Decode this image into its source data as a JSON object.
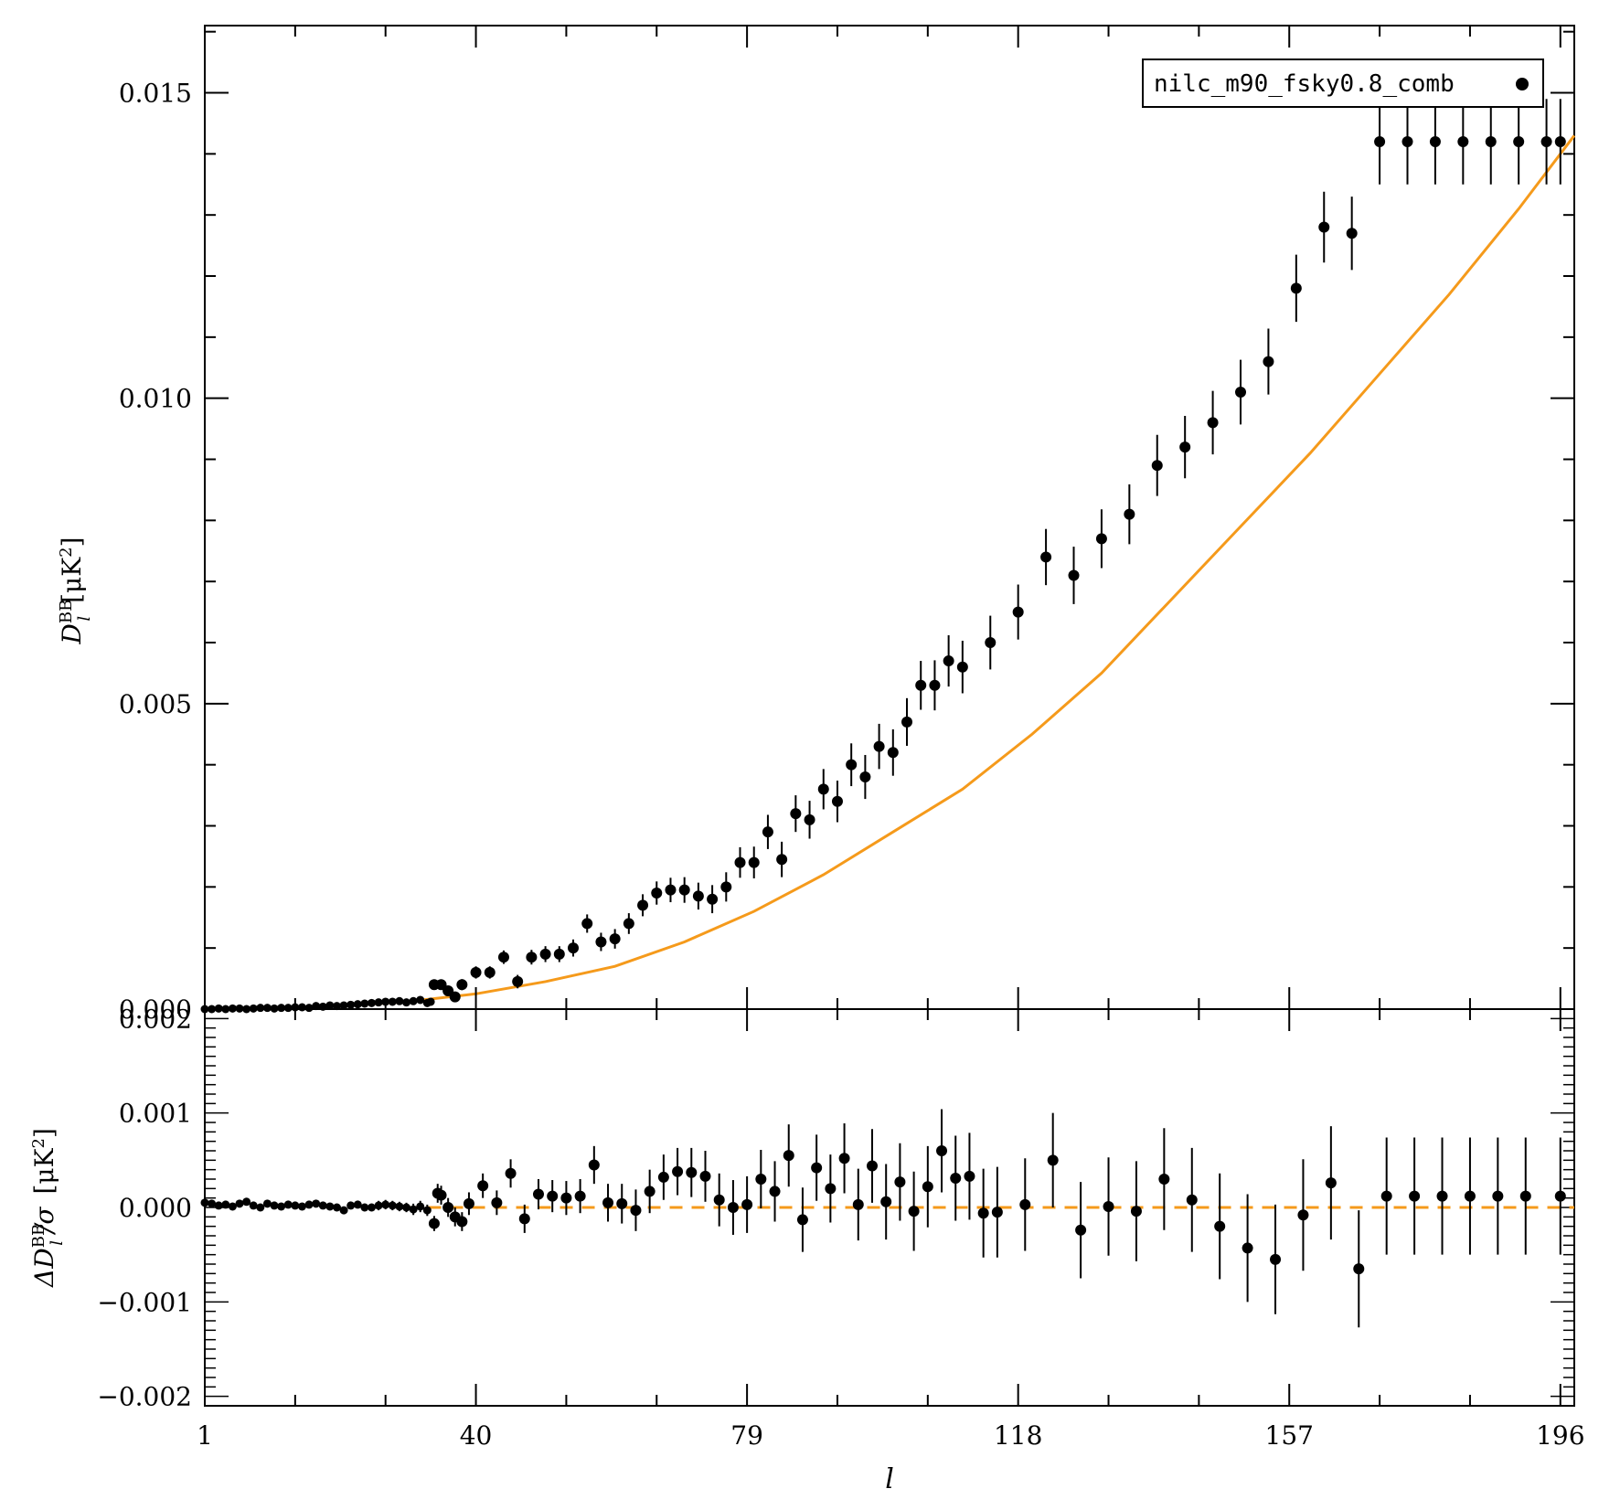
{
  "chart_data": [
    {
      "type": "scatter",
      "panel": "top",
      "ylabel": "D_l^BB [μK²]",
      "ylabel_parts": {
        "sym": "D",
        "sub": "l",
        "sup": "BB",
        "unit": "[μK",
        "unit_sup": "2",
        "unit_close": "]"
      },
      "xlim": [
        1,
        198
      ],
      "ylim": [
        0.0,
        0.0161
      ],
      "y_ticks": [
        "0.000",
        "0.005",
        "0.010",
        "0.015"
      ],
      "y_tick_values": [
        0.0,
        0.005,
        0.01,
        0.015
      ],
      "legend": {
        "label": "nilc_m90_fsky0.8_comb",
        "placement": "top-right"
      },
      "model_color": "#f59a1b",
      "points_color": "#000000",
      "model": {
        "x": [
          1,
          10,
          20,
          30,
          40,
          50,
          60,
          70,
          80,
          90,
          100,
          110,
          120,
          130,
          140,
          150,
          160,
          170,
          180,
          190,
          198
        ],
        "y": [
          0.0,
          2e-05,
          5e-05,
          0.00012,
          0.00025,
          0.00045,
          0.0007,
          0.0011,
          0.0016,
          0.0022,
          0.0029,
          0.0036,
          0.0045,
          0.0055,
          0.0067,
          0.0079,
          0.0091,
          0.0104,
          0.0117,
          0.0131,
          0.0143
        ]
      },
      "series": {
        "name": "nilc_m90_fsky0.8_comb",
        "x": [
          1,
          2,
          3,
          4,
          5,
          6,
          7,
          8,
          9,
          10,
          11,
          12,
          13,
          14,
          15,
          16,
          17,
          18,
          19,
          20,
          21,
          22,
          23,
          24,
          25,
          26,
          27,
          28,
          29,
          30,
          31,
          32,
          33,
          33.5,
          34,
          35,
          36,
          37,
          38,
          40,
          42,
          44,
          46,
          48,
          50,
          52,
          54,
          56,
          58,
          60,
          62,
          64,
          66,
          68,
          70,
          72,
          74,
          76,
          78,
          80,
          82,
          84,
          86,
          88,
          90,
          92,
          94,
          96,
          98,
          100,
          102,
          104,
          106,
          108,
          110,
          114,
          118,
          122,
          126,
          130,
          134,
          138,
          142,
          146,
          150,
          154,
          158,
          162,
          166,
          170,
          174,
          178,
          182,
          186,
          190,
          194,
          196
        ],
        "y": [
          0.0,
          0.0,
          1e-05,
          0.0,
          1e-05,
          1e-05,
          0.0,
          1e-05,
          2e-05,
          2e-05,
          1e-05,
          2e-05,
          2e-05,
          3e-05,
          3e-05,
          2e-05,
          5e-05,
          4e-05,
          6e-05,
          5e-05,
          6e-05,
          7e-05,
          8e-05,
          9e-05,
          0.0001,
          0.00011,
          0.00012,
          0.00012,
          0.00013,
          0.00011,
          0.00013,
          0.00015,
          0.0001,
          0.00012,
          0.0004,
          0.0004,
          0.0003,
          0.0002,
          0.0004,
          0.0006,
          0.0006,
          0.00085,
          0.00045,
          0.00085,
          0.0009,
          0.0009,
          0.001,
          0.0014,
          0.0011,
          0.00115,
          0.0014,
          0.0017,
          0.0019,
          0.00195,
          0.00195,
          0.00185,
          0.0018,
          0.002,
          0.0024,
          0.0024,
          0.0029,
          0.00245,
          0.0032,
          0.0031,
          0.0036,
          0.0034,
          0.004,
          0.0038,
          0.0043,
          0.0042,
          0.0047,
          0.0053,
          0.0053,
          0.0057,
          0.0056,
          0.006,
          0.0065,
          0.0074,
          0.0071,
          0.0077,
          0.0081,
          0.0089,
          0.0092,
          0.0096,
          0.0101,
          0.0106,
          0.0118,
          0.0128,
          0.0127,
          0.0142,
          0.0142,
          0.0142,
          0.0142,
          0.0142,
          0.0142,
          0.0142,
          0.0142
        ],
        "err": [
          1e-05,
          1e-05,
          1e-05,
          1e-05,
          1e-05,
          1e-05,
          1e-05,
          1e-05,
          1e-05,
          1e-05,
          1e-05,
          1e-05,
          1e-05,
          1e-05,
          2e-05,
          2e-05,
          2e-05,
          2e-05,
          2e-05,
          2e-05,
          3e-05,
          3e-05,
          3e-05,
          3e-05,
          3e-05,
          4e-05,
          4e-05,
          4e-05,
          4e-05,
          4e-05,
          5e-05,
          5e-05,
          5e-05,
          5e-05,
          8e-05,
          8e-05,
          8e-05,
          8e-05,
          9e-05,
          0.0001,
          0.0001,
          0.00011,
          0.00011,
          0.00012,
          0.00013,
          0.00013,
          0.00014,
          0.00015,
          0.00015,
          0.00016,
          0.00017,
          0.00018,
          0.00019,
          0.0002,
          0.00021,
          0.00022,
          0.00023,
          0.00024,
          0.00025,
          0.00026,
          0.00028,
          0.00029,
          0.0003,
          0.00031,
          0.00033,
          0.00034,
          0.00035,
          0.00036,
          0.00037,
          0.00038,
          0.00039,
          0.0004,
          0.00041,
          0.00042,
          0.00043,
          0.00044,
          0.00045,
          0.00046,
          0.00047,
          0.00048,
          0.00049,
          0.0005,
          0.00051,
          0.00052,
          0.00053,
          0.00054,
          0.00055,
          0.00058,
          0.0006,
          0.0007,
          0.0007,
          0.0007,
          0.0007,
          0.0007,
          0.0007,
          0.0007,
          0.0007
        ]
      }
    },
    {
      "type": "scatter",
      "panel": "bottom",
      "ylabel": "ΔD_l^BB/σ [μK²]",
      "ylabel_parts": {
        "sym": "ΔD",
        "sub": "l",
        "sup": "BB",
        "tail": "/σ",
        "unit": "[μK",
        "unit_sup": "2",
        "unit_close": "]"
      },
      "xlabel": "l",
      "xlim": [
        1,
        198
      ],
      "ylim": [
        -0.0021,
        0.0021
      ],
      "x_ticks": [
        "1",
        "40",
        "79",
        "118",
        "157",
        "196"
      ],
      "x_tick_values": [
        1,
        40,
        79,
        118,
        157,
        196
      ],
      "y_ticks": [
        "0.002",
        "0.001",
        "0.000",
        "−0.001",
        "−0.002"
      ],
      "y_tick_values": [
        0.002,
        0.001,
        0.0,
        -0.001,
        -0.002
      ],
      "zero_line_color": "#f59a1b",
      "series": {
        "x": [
          1,
          2,
          3,
          4,
          5,
          6,
          7,
          8,
          9,
          10,
          11,
          12,
          13,
          14,
          15,
          16,
          17,
          18,
          19,
          20,
          21,
          22,
          23,
          24,
          25,
          26,
          27,
          28,
          29,
          30,
          31,
          32,
          33,
          34,
          34.5,
          35,
          36,
          37,
          38,
          39,
          41,
          43,
          45,
          47,
          49,
          51,
          53,
          55,
          57,
          59,
          61,
          63,
          65,
          67,
          69,
          71,
          73,
          75,
          77,
          79,
          81,
          83,
          85,
          87,
          89,
          91,
          93,
          95,
          97,
          99,
          101,
          103,
          105,
          107,
          109,
          111,
          113,
          115,
          119,
          123,
          127,
          131,
          135,
          139,
          143,
          147,
          151,
          155,
          159,
          163,
          167,
          171,
          175,
          179,
          183,
          187,
          191,
          196
        ],
        "y": [
          5e-05,
          4e-05,
          2e-05,
          3e-05,
          1e-05,
          4e-05,
          6e-05,
          2e-05,
          0.0,
          4e-05,
          2e-05,
          1e-05,
          3e-05,
          2e-05,
          1e-05,
          3e-05,
          4e-05,
          2e-05,
          1e-05,
          0.0,
          -3e-05,
          2e-05,
          3e-05,
          0.0,
          0.0,
          2e-05,
          3e-05,
          2e-05,
          1e-05,
          0.0,
          -2e-05,
          1e-05,
          -3e-05,
          -0.00017,
          0.00015,
          0.00013,
          0.0,
          -0.0001,
          -0.00015,
          4e-05,
          0.00023,
          5e-05,
          0.00036,
          -0.00012,
          0.00014,
          0.00012,
          0.0001,
          0.00012,
          0.00045,
          5e-05,
          4e-05,
          -3e-05,
          0.00017,
          0.00032,
          0.00038,
          0.00037,
          0.00033,
          8e-05,
          0.0,
          3e-05,
          0.0003,
          0.00017,
          0.00055,
          -0.00013,
          0.00042,
          0.0002,
          0.00052,
          3e-05,
          0.00044,
          6e-05,
          0.00027,
          -4e-05,
          0.00022,
          0.0006,
          0.00031,
          0.00033,
          -6e-05,
          -5e-05,
          3e-05,
          0.0005,
          -0.00024,
          1e-05,
          -4e-05,
          0.0003,
          8e-05,
          -0.0002,
          -0.00043,
          -0.00055,
          -8e-05,
          0.00026,
          -0.00065,
          0.00012,
          0.00012,
          0.00012,
          0.00012,
          0.00012,
          0.00012,
          0.00012
        ],
        "err": [
          2e-05,
          2e-05,
          2e-05,
          2e-05,
          2e-05,
          2e-05,
          2e-05,
          2e-05,
          2e-05,
          2e-05,
          2e-05,
          2e-05,
          2e-05,
          2e-05,
          3e-05,
          3e-05,
          3e-05,
          3e-05,
          3e-05,
          3e-05,
          4e-05,
          4e-05,
          4e-05,
          4e-05,
          4e-05,
          5e-05,
          5e-05,
          5e-05,
          5e-05,
          5e-05,
          6e-05,
          6e-05,
          6e-05,
          8e-05,
          0.0001,
          0.0001,
          0.0001,
          0.0001,
          0.0001,
          0.00012,
          0.00013,
          0.00013,
          0.00015,
          0.00015,
          0.00016,
          0.00017,
          0.00018,
          0.00018,
          0.0002,
          0.0002,
          0.00021,
          0.00022,
          0.00023,
          0.00024,
          0.00025,
          0.00026,
          0.00027,
          0.00028,
          0.00029,
          0.0003,
          0.00031,
          0.00032,
          0.00033,
          0.00034,
          0.00035,
          0.00036,
          0.00037,
          0.00038,
          0.00039,
          0.0004,
          0.00041,
          0.00042,
          0.00043,
          0.00044,
          0.00045,
          0.00046,
          0.00047,
          0.00048,
          0.00049,
          0.0005,
          0.00051,
          0.00052,
          0.00053,
          0.00054,
          0.00055,
          0.00056,
          0.00057,
          0.00058,
          0.00059,
          0.0006,
          0.00062,
          0.00062,
          0.00062,
          0.00062,
          0.00062,
          0.00062,
          0.00062,
          0.00062
        ]
      }
    }
  ]
}
